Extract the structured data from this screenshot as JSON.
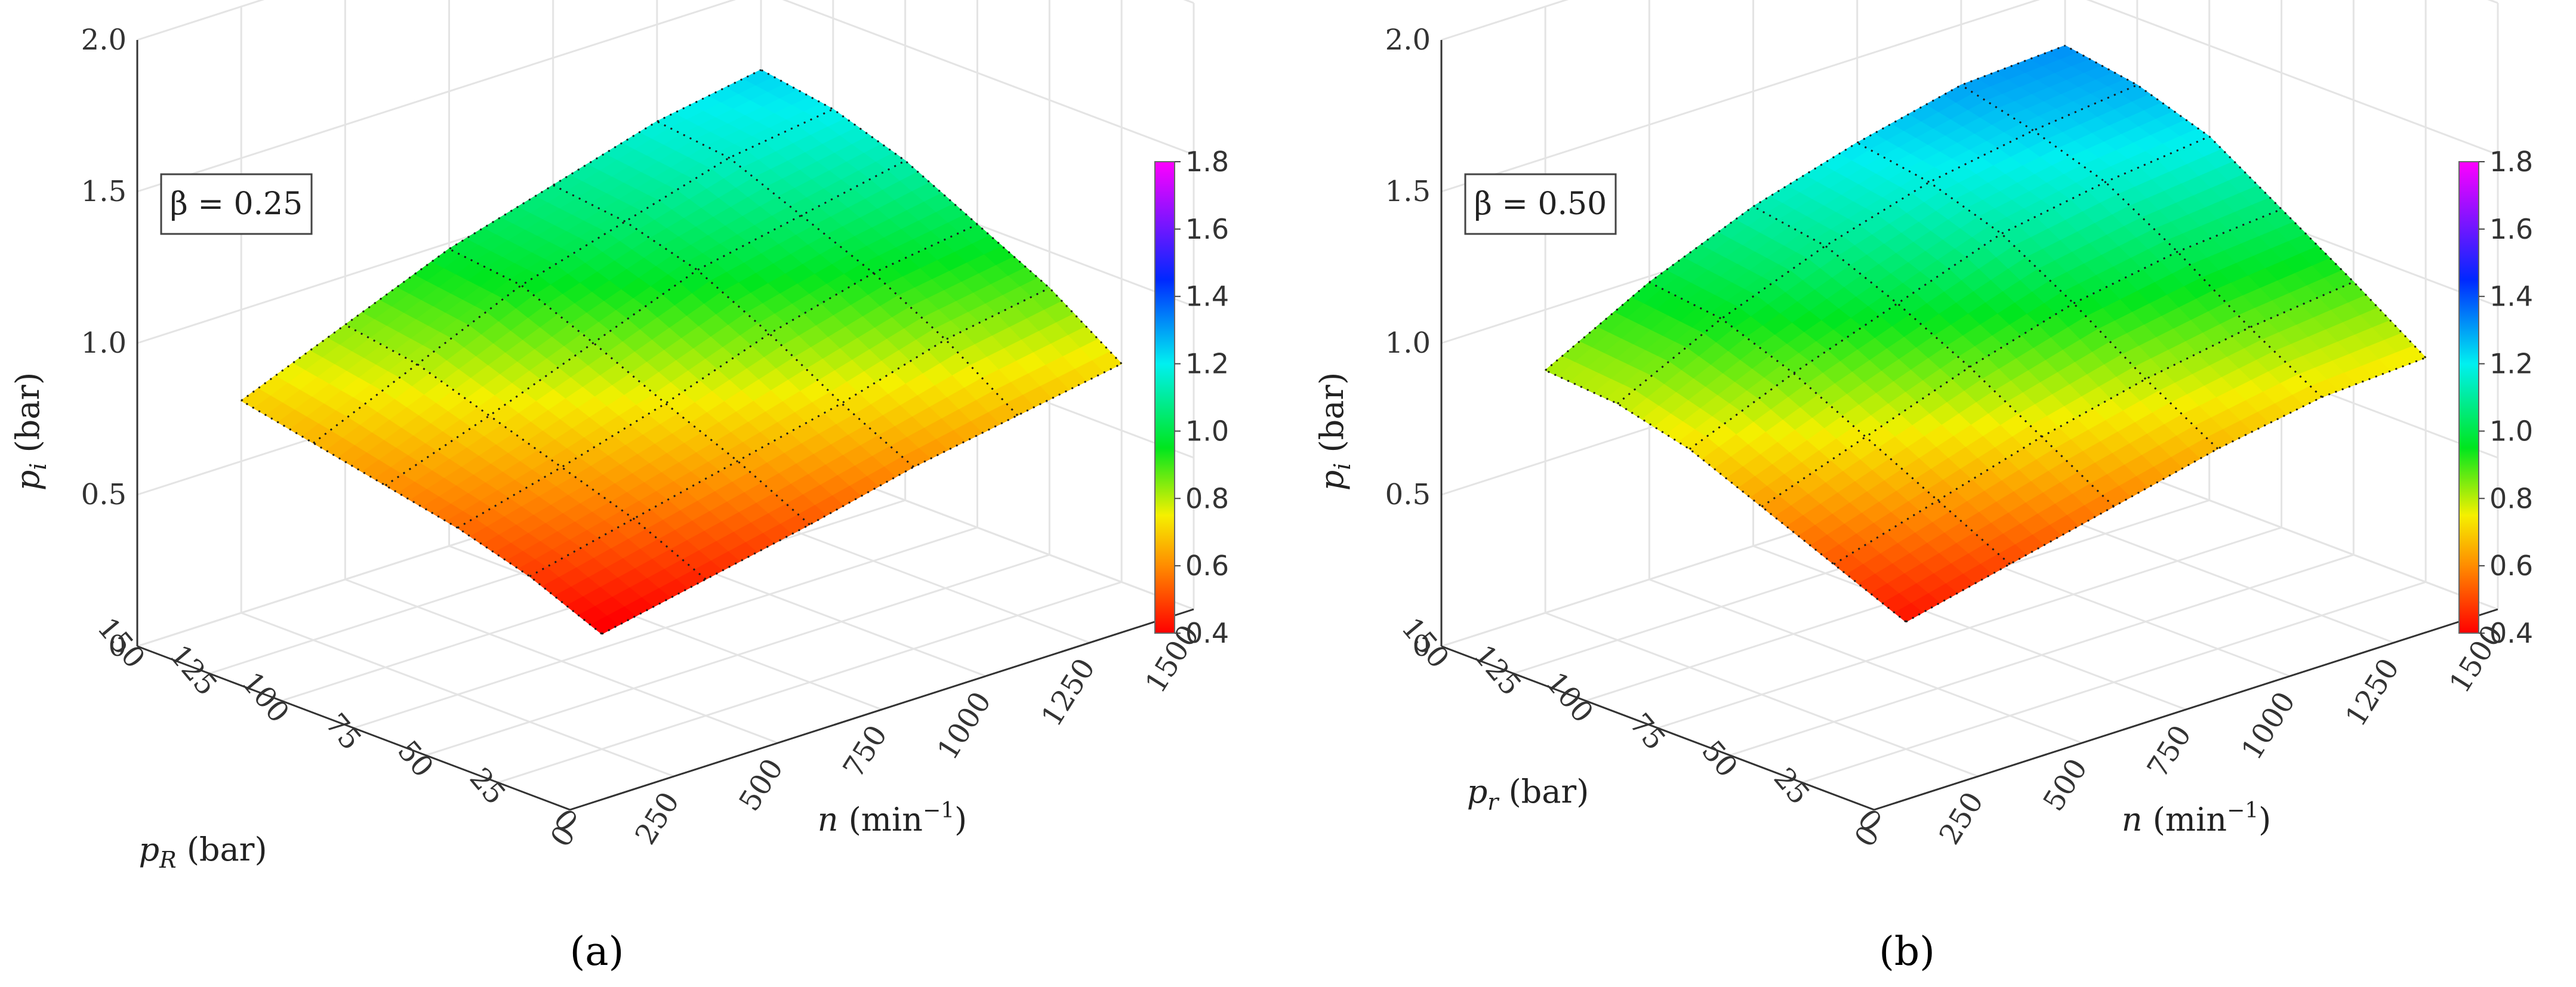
{
  "chart_data": [
    {
      "type": "surface",
      "panel_label": "(a)",
      "annotation": "β = 0.25",
      "xlabel": "n (min⁻¹)",
      "ylabel": "p_R (bar)",
      "zlabel": "p_i (bar)",
      "x_label_parts": {
        "var": "n",
        "unit_open": " (min",
        "exp": "−1",
        "unit_close": ")"
      },
      "y_label_parts": {
        "var": "p",
        "sub": "R",
        "unit": " (bar)"
      },
      "z_label_parts": {
        "var": "p",
        "sub": "i",
        "unit": " (bar)"
      },
      "x_ticks": [
        "0",
        "250",
        "500",
        "750",
        "1000",
        "1250",
        "1500"
      ],
      "y_ticks": [
        "0",
        "25",
        "50",
        "75",
        "100",
        "125",
        "150"
      ],
      "z_ticks": [
        "0",
        "0.5",
        "1.0",
        "1.5",
        "2.0"
      ],
      "xlim": [
        0,
        1500
      ],
      "ylim": [
        0,
        150
      ],
      "zlim": [
        0,
        2
      ],
      "colorbar": {
        "min": 0.4,
        "max": 1.8,
        "ticks": [
          "0.4",
          "0.6",
          "0.8",
          "1.0",
          "1.2",
          "1.4",
          "1.6",
          "1.8"
        ]
      },
      "surface": {
        "x": [
          250,
          500,
          750,
          1000,
          1250,
          1500
        ],
        "y": [
          25,
          50,
          75,
          100,
          125,
          150
        ],
        "z": [
          [
            0.38,
            0.45,
            0.52,
            0.6,
            0.66,
            0.72
          ],
          [
            0.48,
            0.56,
            0.64,
            0.72,
            0.82,
            0.88
          ],
          [
            0.55,
            0.64,
            0.74,
            0.86,
            0.95,
            1.0
          ],
          [
            0.6,
            0.72,
            0.85,
            0.98,
            1.05,
            1.12
          ],
          [
            0.65,
            0.8,
            0.95,
            1.05,
            1.15,
            1.2
          ],
          [
            0.7,
            0.84,
            0.98,
            1.08,
            1.18,
            1.24
          ]
        ]
      }
    },
    {
      "type": "surface",
      "panel_label": "(b)",
      "annotation": "β = 0.50",
      "xlabel": "n (min⁻¹)",
      "ylabel": "p_r (bar)",
      "zlabel": "p_i (bar)",
      "x_label_parts": {
        "var": "n",
        "unit_open": " (min",
        "exp": "−1",
        "unit_close": ")"
      },
      "y_label_parts": {
        "var": "p",
        "sub": "r",
        "unit": " (bar)"
      },
      "z_label_parts": {
        "var": "p",
        "sub": "i",
        "unit": " (bar)"
      },
      "x_ticks": [
        "0",
        "250",
        "500",
        "750",
        "1000",
        "1250",
        "1500"
      ],
      "y_ticks": [
        "0",
        "25",
        "50",
        "75",
        "100",
        "125",
        "150"
      ],
      "z_ticks": [
        "0",
        "0.5",
        "1.0",
        "1.5",
        "2.0"
      ],
      "xlim": [
        0,
        1500
      ],
      "ylim": [
        0,
        150
      ],
      "zlim": [
        0,
        2
      ],
      "colorbar": {
        "min": 0.4,
        "max": 1.8,
        "ticks": [
          "0.4",
          "0.6",
          "0.8",
          "1.0",
          "1.2",
          "1.4",
          "1.6",
          "1.8"
        ]
      },
      "surface": {
        "x": [
          250,
          500,
          750,
          1000,
          1250,
          1500
        ],
        "y": [
          25,
          50,
          75,
          100,
          125,
          150
        ],
        "z": [
          [
            0.42,
            0.5,
            0.58,
            0.66,
            0.72,
            0.74
          ],
          [
            0.52,
            0.62,
            0.72,
            0.8,
            0.86,
            0.9
          ],
          [
            0.62,
            0.74,
            0.86,
            0.96,
            1.02,
            1.05
          ],
          [
            0.72,
            0.86,
            0.98,
            1.1,
            1.16,
            1.2
          ],
          [
            0.78,
            0.95,
            1.08,
            1.18,
            1.24,
            1.28
          ],
          [
            0.8,
            0.98,
            1.12,
            1.22,
            1.3,
            1.32
          ]
        ]
      }
    }
  ]
}
